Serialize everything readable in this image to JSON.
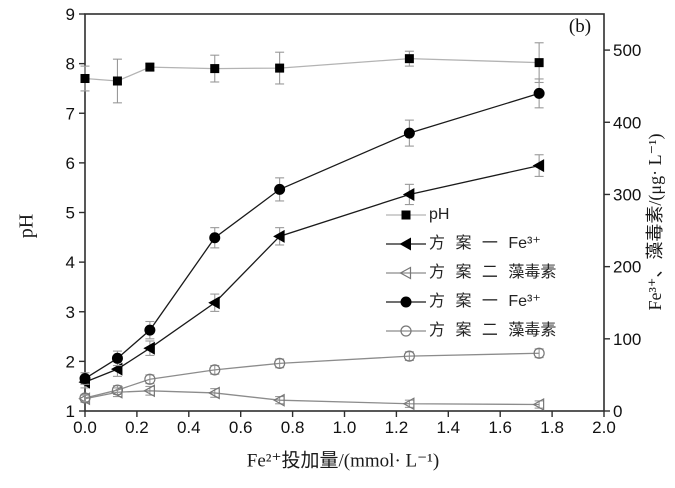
{
  "panel_label": "(b)",
  "axes": {
    "x": {
      "title": "Fe²⁺投加量/(mmol· L⁻¹)",
      "tick_labels": [
        "0.0",
        "0.2",
        "0.4",
        "0.6",
        "0.8",
        "1.0",
        "1.2",
        "1.4",
        "1.6",
        "1.8",
        "2.0"
      ],
      "tick_values": [
        0,
        0.2,
        0.4,
        0.6,
        0.8,
        1.0,
        1.2,
        1.4,
        1.6,
        1.8,
        2.0
      ],
      "range": [
        0,
        2.0
      ]
    },
    "y_left": {
      "title": "pH",
      "tick_labels": [
        "1",
        "2",
        "3",
        "4",
        "5",
        "6",
        "7",
        "8",
        "9"
      ],
      "tick_values": [
        1,
        2,
        3,
        4,
        5,
        6,
        7,
        8,
        9
      ],
      "range": [
        1,
        9
      ]
    },
    "y_right": {
      "title": "Fe³⁺、藻毒素/(μg· L⁻¹)",
      "tick_labels": [
        "0",
        "100",
        "200",
        "300",
        "400",
        "500"
      ],
      "tick_values": [
        0,
        100,
        200,
        300,
        400,
        500
      ],
      "range": [
        0,
        550
      ]
    }
  },
  "chart_data": {
    "type": "line",
    "grid": false,
    "legend_position": "middle-right",
    "x": [
      0,
      0.125,
      0.25,
      0.5,
      0.75,
      1.25,
      1.75
    ],
    "error_bar_color": "#999999",
    "series": [
      {
        "name": "pH",
        "axis": "left",
        "marker": "square-filled",
        "line_color": "#b3b3b3",
        "marker_color": "#000000",
        "values": [
          7.7,
          7.65,
          7.93,
          7.9,
          7.91,
          8.1,
          8.02
        ],
        "errors": [
          0.25,
          0.44,
          0.07,
          0.27,
          0.32,
          0.15,
          0.4
        ]
      },
      {
        "name": "方 案 一 Fe³⁺",
        "axis": "right",
        "marker": "triangle-left-filled",
        "line_color": "#1a1a1a",
        "marker_color": "#000000",
        "values": [
          40,
          58,
          87,
          150,
          242,
          300,
          340
        ],
        "errors": [
          8,
          10,
          10,
          12,
          12,
          14,
          15
        ]
      },
      {
        "name": "方 案 二 藻毒素",
        "axis": "right",
        "marker": "triangle-left-open",
        "line_color": "#8c8c8c",
        "marker_color": "#777777",
        "values": [
          17,
          26,
          28,
          25,
          15,
          10,
          9
        ],
        "errors": [
          5,
          6,
          6,
          6,
          5,
          5,
          5
        ]
      },
      {
        "name": "方 案 一 Fe³⁺",
        "axis": "right",
        "marker": "circle-filled",
        "line_color": "#1a1a1a",
        "marker_color": "#000000",
        "values": [
          45,
          73,
          112,
          240,
          307,
          385,
          440
        ],
        "errors": [
          8,
          10,
          12,
          14,
          16,
          18,
          20
        ]
      },
      {
        "name": "方 案 二 藻毒素",
        "axis": "right",
        "marker": "circle-open",
        "line_color": "#8c8c8c",
        "marker_color": "#777777",
        "values": [
          18,
          29,
          44,
          57,
          66,
          76,
          80
        ],
        "errors": [
          5,
          6,
          6,
          6,
          6,
          6,
          6
        ]
      }
    ]
  }
}
